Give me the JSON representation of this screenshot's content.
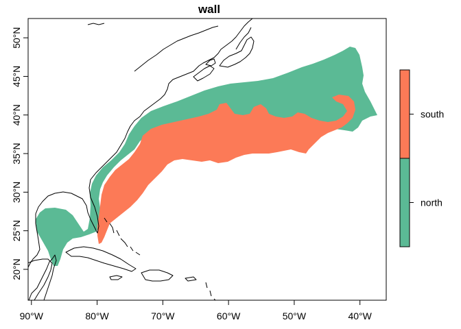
{
  "map": {
    "title": "wall",
    "longitude_ticks": [
      "90°W",
      "80°W",
      "70°W",
      "60°W",
      "50°W",
      "40°W"
    ],
    "latitude_ticks": [
      "20°N",
      "25°N",
      "30°N",
      "35°N",
      "40°N",
      "45°N",
      "50°N"
    ],
    "extent": {
      "lon_min": -90.5,
      "lon_max": -36,
      "lat_min": 16,
      "lat_max": 52.5
    },
    "legend": {
      "entries": [
        {
          "label": "south",
          "color": "#FC7A57"
        },
        {
          "label": "north",
          "color": "#5BBA95"
        }
      ]
    },
    "colors": {
      "north": "#5BBA95",
      "south": "#FC7A57",
      "coastline": "#000000"
    }
  }
}
